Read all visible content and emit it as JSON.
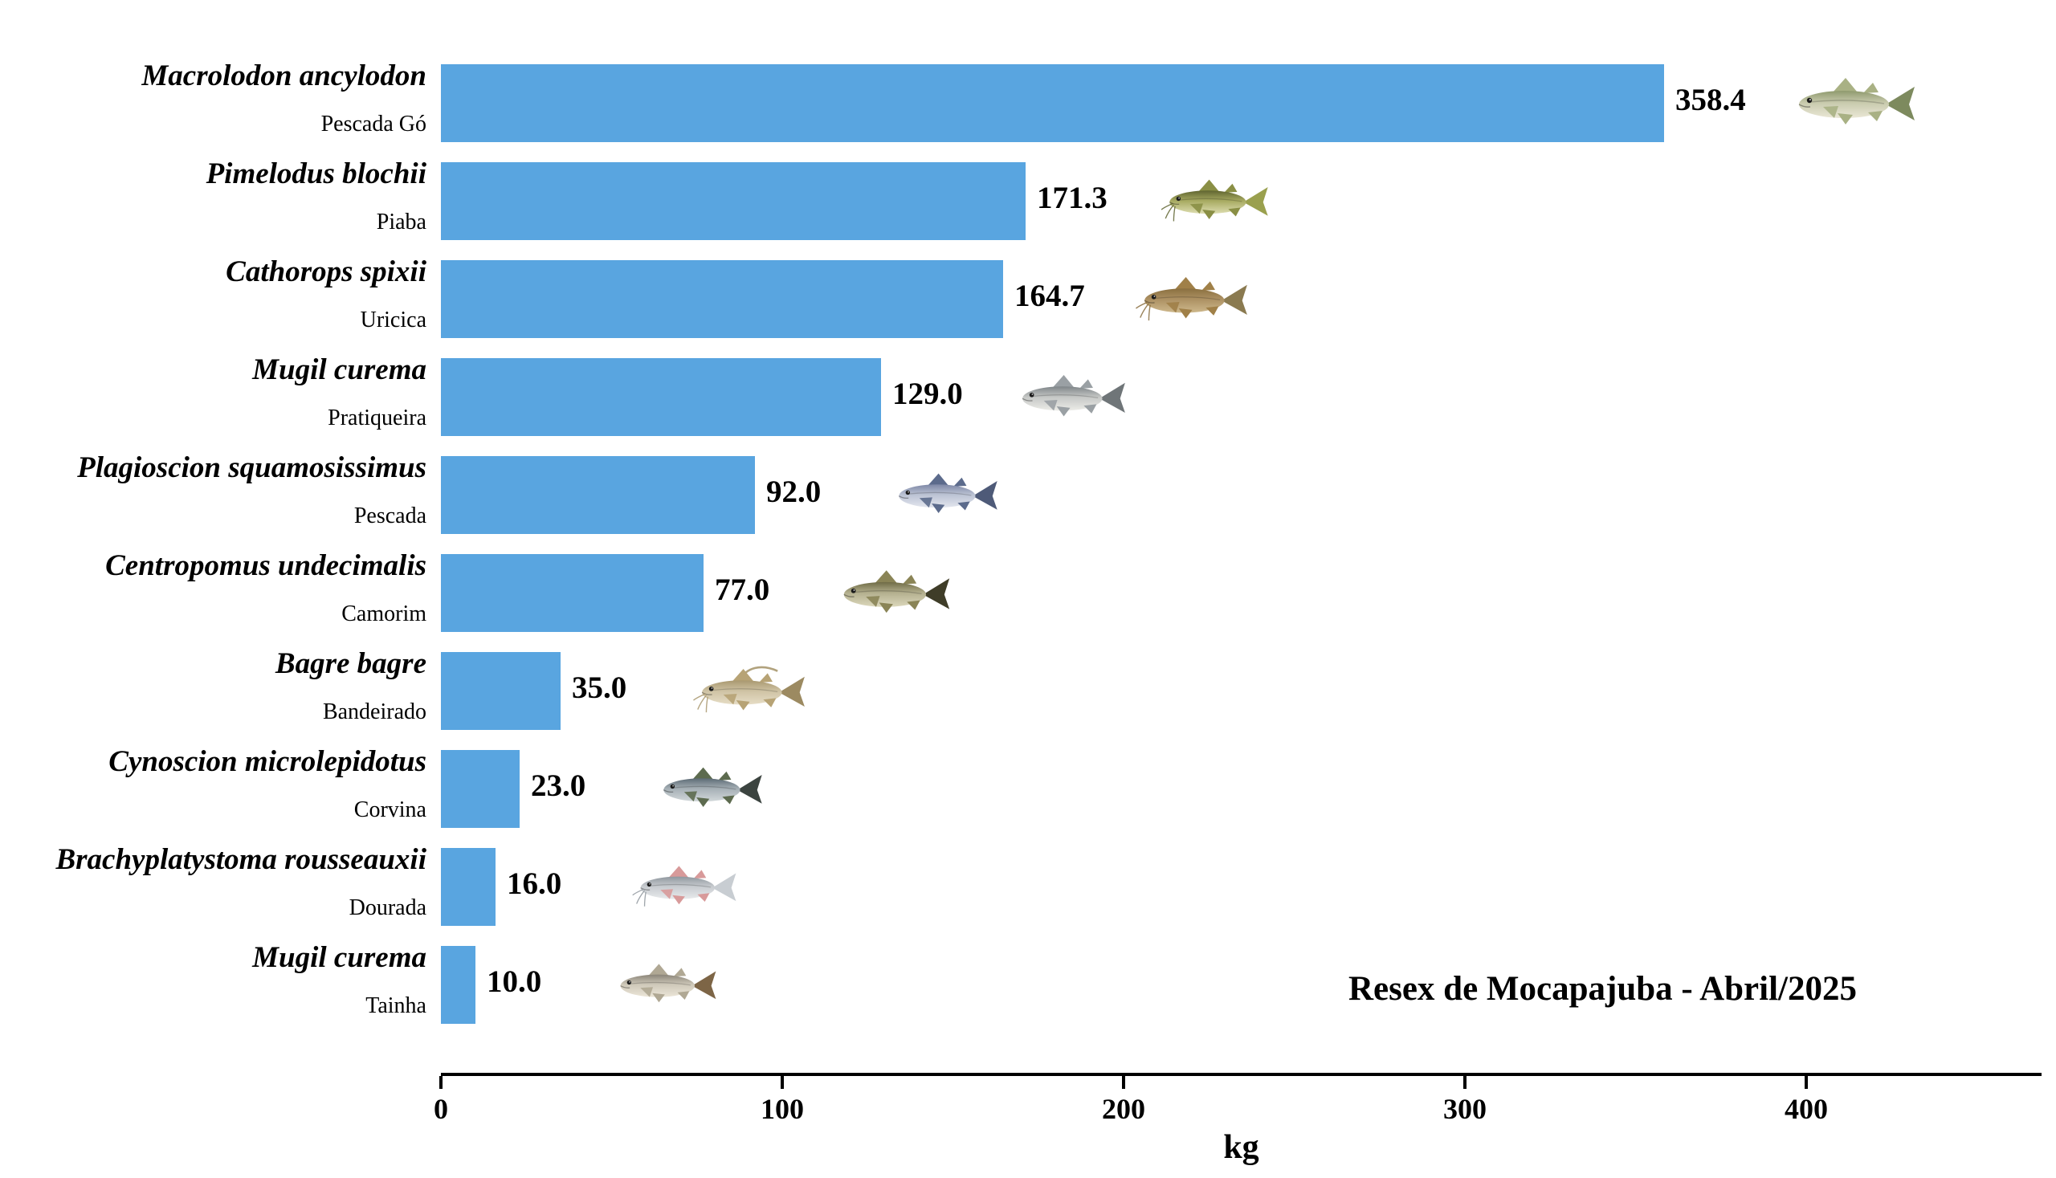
{
  "chart_data": {
    "type": "bar",
    "orientation": "horizontal",
    "title": "",
    "xlabel": "kg",
    "ylabel": "",
    "xticks": [
      0,
      100,
      200,
      300,
      400
    ],
    "xlim": [
      0,
      469
    ],
    "grid": false,
    "bar_color": "#59a5e0",
    "annotation": "Resex de Mocapajuba - Abril/2025",
    "rows": [
      {
        "species": "Macrolodon ancylodon",
        "common_name": "Pescada Gó",
        "value": 358.4,
        "value_label": "358.4",
        "icon": "pescada-go-fish-icon",
        "fish": {
          "back": "#8f9a6e",
          "mid": "#c9cbae",
          "belly": "#eae7d6",
          "fin": "#a9b184",
          "tail": "#7d8a5e",
          "whiskers": false,
          "filament": false,
          "w": 170
        }
      },
      {
        "species": "Pimelodus blochii",
        "common_name": "Piaba",
        "value": 171.3,
        "value_label": "171.3",
        "icon": "piaba-fish-icon",
        "fish": {
          "back": "#5f6430",
          "mid": "#a8ab62",
          "belly": "#ddddb0",
          "fin": "#8a8f45",
          "tail": "#9aa04e",
          "whiskers": true,
          "filament": false,
          "w": 145
        }
      },
      {
        "species": "Cathorops spixii",
        "common_name": "Uricica",
        "value": 164.7,
        "value_label": "164.7",
        "icon": "uricica-fish-icon",
        "fish": {
          "back": "#8a6f3f",
          "mid": "#ad9163",
          "belly": "#cdb88c",
          "fin": "#a08048",
          "tail": "#8a7a50",
          "whiskers": true,
          "filament": false,
          "w": 150
        }
      },
      {
        "species": "Mugil curema",
        "common_name": "Pratiqueira",
        "value": 129.0,
        "value_label": "129.0",
        "icon": "pratiqueira-fish-icon",
        "fish": {
          "back": "#7e8488",
          "mid": "#c6c8c6",
          "belly": "#ecece8",
          "fin": "#9aa0a4",
          "tail": "#6f7578",
          "whiskers": false,
          "filament": false,
          "w": 150
        }
      },
      {
        "species": "Plagioscion squamosissimus",
        "common_name": "Pescada",
        "value": 92.0,
        "value_label": "92.0",
        "icon": "pescada-fish-icon",
        "fish": {
          "back": "#7d87a6",
          "mid": "#bcc3d4",
          "belly": "#e3e6ee",
          "fin": "#5c6b8c",
          "tail": "#4e5a78",
          "whiskers": false,
          "filament": false,
          "w": 145
        }
      },
      {
        "species": "Centropomus undecimalis",
        "common_name": "Camorim",
        "value": 77.0,
        "value_label": "77.0",
        "icon": "camorim-fish-icon",
        "fish": {
          "back": "#6f6b45",
          "mid": "#b5b190",
          "belly": "#dcd8bc",
          "fin": "#8a8456",
          "tail": "#3f3d28",
          "whiskers": false,
          "filament": false,
          "w": 155
        }
      },
      {
        "species": "Bagre bagre",
        "common_name": "Bandeirado",
        "value": 35.0,
        "value_label": "35.0",
        "icon": "bandeirado-fish-icon",
        "fish": {
          "back": "#a9986f",
          "mid": "#cfc3a4",
          "belly": "#e6ddc6",
          "fin": "#b7a375",
          "tail": "#9c8a61",
          "whiskers": true,
          "filament": true,
          "w": 150
        }
      },
      {
        "species": "Cynoscion microlepidotus",
        "common_name": "Corvina",
        "value": 23.0,
        "value_label": "23.0",
        "icon": "corvina-fish-icon",
        "fish": {
          "back": "#5c6a74",
          "mid": "#a6b0b6",
          "belly": "#d2d8da",
          "fin": "#5d6b4f",
          "tail": "#3c4440",
          "whiskers": false,
          "filament": false,
          "w": 145
        }
      },
      {
        "species": "Brachyplatystoma rousseauxii",
        "common_name": "Dourada",
        "value": 16.0,
        "value_label": "16.0",
        "icon": "dourada-fish-icon",
        "fish": {
          "back": "#8f979e",
          "mid": "#c8ccd0",
          "belly": "#e8eaec",
          "fin": "#d89a9a",
          "tail": "#c8cdd2",
          "whiskers": true,
          "filament": false,
          "w": 140
        }
      },
      {
        "species": "Mugil curema",
        "common_name": "Tainha",
        "value": 10.0,
        "value_label": "10.0",
        "icon": "tainha-fish-icon",
        "fish": {
          "back": "#8a8478",
          "mid": "#cfc9ba",
          "belly": "#ece6d8",
          "fin": "#b0a894",
          "tail": "#7d6546",
          "whiskers": false,
          "filament": false,
          "w": 140
        }
      }
    ]
  }
}
